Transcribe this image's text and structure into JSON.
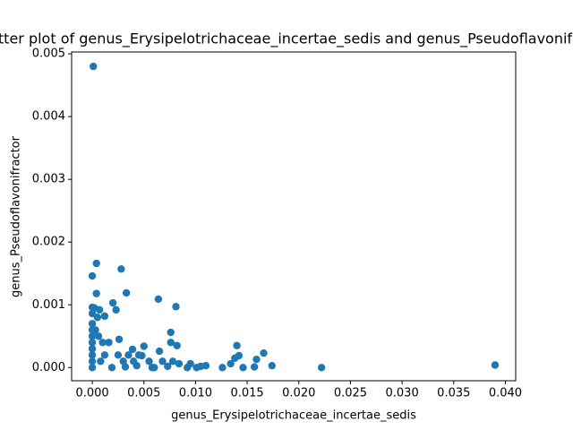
{
  "chart_data": {
    "type": "scatter",
    "title": "Scatter plot of genus_Erysipelotrichaceae_incertae_sedis and genus_Pseudoflavonifractor",
    "x_label": "genus_Erysipelotrichaceae_incertae_sedis",
    "y_label": "genus_Pseudoflavonifractor",
    "color": "#1f77b4",
    "xlim": [
      -0.002,
      0.041
    ],
    "ylim": [
      -0.00021,
      0.00503
    ],
    "xticks": [
      {
        "value": 0,
        "label": "0.000"
      },
      {
        "value": 0.005,
        "label": "0.005"
      },
      {
        "value": 0.01,
        "label": "0.010"
      },
      {
        "value": 0.015,
        "label": "0.015"
      },
      {
        "value": 0.02,
        "label": "0.020"
      },
      {
        "value": 0.025,
        "label": "0.025"
      },
      {
        "value": 0.03,
        "label": "0.030"
      },
      {
        "value": 0.035,
        "label": "0.035"
      },
      {
        "value": 0.04,
        "label": "0.040"
      }
    ],
    "yticks": [
      {
        "value": 0,
        "label": "0.000"
      },
      {
        "value": 0.001,
        "label": "0.001"
      },
      {
        "value": 0.002,
        "label": "0.002"
      },
      {
        "value": 0.003,
        "label": "0.003"
      },
      {
        "value": 0.004,
        "label": "0.004"
      },
      {
        "value": 0.005,
        "label": "0.005"
      }
    ],
    "x": [
      0.0001,
      0.0004,
      0,
      0.0028,
      0.0033,
      0.0004,
      0.002,
      0.0064,
      0.0081,
      0.0023,
      0,
      0.0007,
      0.0012,
      0,
      0.0076,
      0.0026,
      0.0076,
      0.005,
      0.0082,
      0.014,
      0.0039,
      0.0065,
      0.0166,
      0.0142,
      0.0048,
      0.0138,
      0.0159,
      0.0134,
      0.0174,
      0.0222,
      0.039,
      0.0126,
      0.0146,
      0.0157,
      0.011,
      0.0101,
      0.0095,
      0.0084,
      0.0073,
      0.0058,
      0.0043,
      0.0032,
      0.0019,
      0,
      0,
      0,
      0,
      0,
      0,
      0,
      0,
      0.0005,
      0.0006,
      0.001,
      0.0012,
      0.0016,
      0.0008,
      0.0025,
      0.003,
      0.0035,
      0.004,
      0.0045,
      0.0055,
      0.0068,
      0.006,
      0.0078,
      0.0092,
      0.0105,
      0.0002,
      0.0003
    ],
    "y": [
      0.0048,
      0.00166,
      0.00146,
      0.00157,
      0.00119,
      0.00118,
      0.00103,
      0.00109,
      0.00097,
      0.00092,
      0.00096,
      0.00092,
      0.00082,
      0.00086,
      0.00056,
      0.00045,
      0.0004,
      0.00034,
      0.00035,
      0.00035,
      0.00029,
      0.00026,
      0.00023,
      0.00019,
      0.00019,
      0.00015,
      0.00013,
      6e-05,
      3e-05,
      0,
      4e-05,
      0,
      0,
      1e-05,
      3e-05,
      0,
      6e-05,
      6e-05,
      2e-05,
      0,
      3e-05,
      1e-05,
      0,
      0.0007,
      0.0006,
      0.0005,
      0.0004,
      0.0003,
      0.0002,
      0.0001,
      0,
      0.0008,
      0.0005,
      0.0004,
      0.0002,
      0.0004,
      0.0001,
      0.0002,
      0.0001,
      0.0002,
      0.0001,
      0.0002,
      0.0001,
      0.0001,
      0,
      0.0001,
      0,
      2e-05,
      0.00095,
      0.0006
    ]
  }
}
